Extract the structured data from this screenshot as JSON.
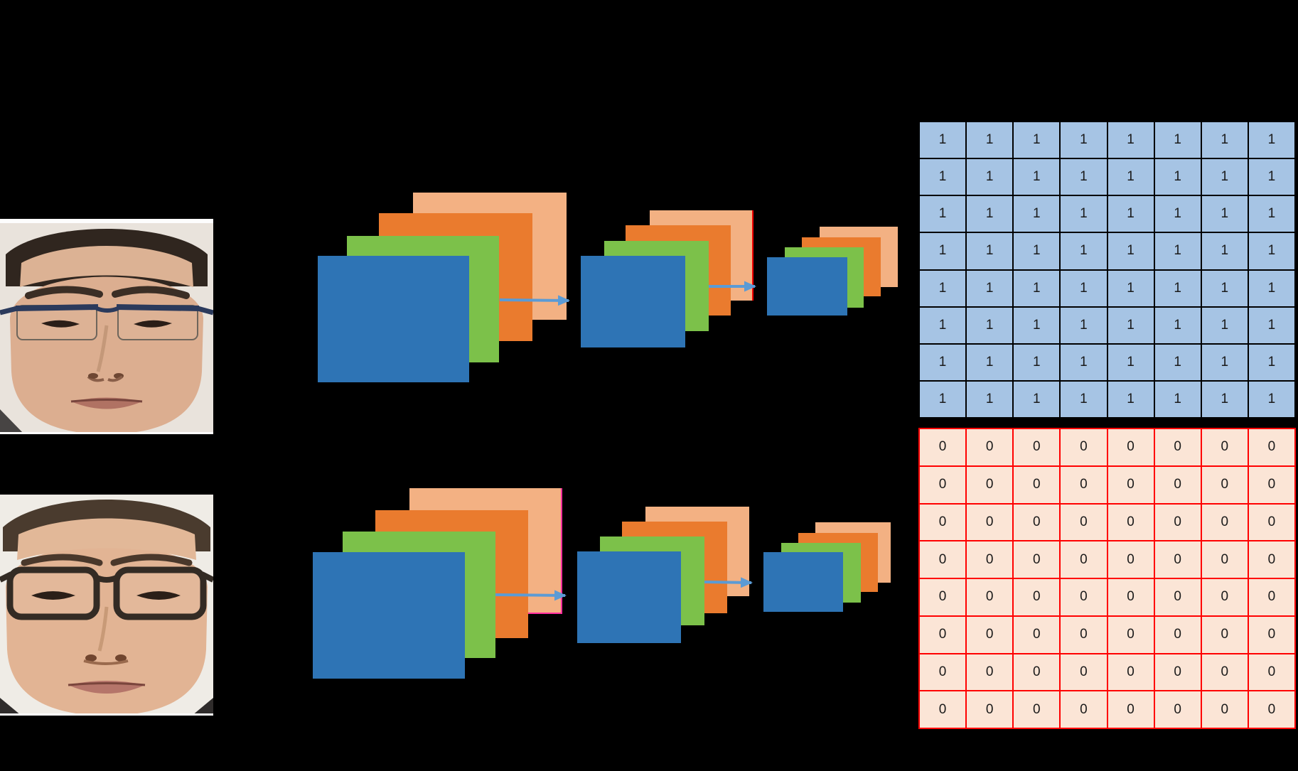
{
  "palette": {
    "background": "#000000",
    "map_blue": "#2E74B5",
    "map_green": "#7CC14A",
    "map_orange": "#EA7B2E",
    "map_peach": "#F3B183",
    "arrow_blue": "#5B9BD5",
    "arrow_black": "#000000",
    "peach_edge_red": "#FF0000",
    "peach_edge_magenta": "#FF2E9F",
    "ones_grid_fill": "#A6C4E4",
    "ones_grid_line": "#000000",
    "zeros_grid_fill": "#FBE5D6",
    "zeros_grid_line": "#FF0000",
    "digit_color": "#1a1a1a"
  },
  "ones_grid": {
    "rows": 8,
    "cols": 8,
    "values": [
      [
        "1",
        "1",
        "1",
        "1",
        "1",
        "1",
        "1",
        "1"
      ],
      [
        "1",
        "1",
        "1",
        "1",
        "1",
        "1",
        "1",
        "1"
      ],
      [
        "1",
        "1",
        "1",
        "1",
        "1",
        "1",
        "1",
        "1"
      ],
      [
        "1",
        "1",
        "1",
        "1",
        "1",
        "1",
        "1",
        "1"
      ],
      [
        "1",
        "1",
        "1",
        "1",
        "1",
        "1",
        "1",
        "1"
      ],
      [
        "1",
        "1",
        "1",
        "1",
        "1",
        "1",
        "1",
        "1"
      ],
      [
        "1",
        "1",
        "1",
        "1",
        "1",
        "1",
        "1",
        "1"
      ],
      [
        "1",
        "1",
        "1",
        "1",
        "1",
        "1",
        "1",
        "1"
      ]
    ]
  },
  "zeros_grid": {
    "rows": 8,
    "cols": 8,
    "values": [
      [
        "0",
        "0",
        "0",
        "0",
        "0",
        "0",
        "0",
        "0"
      ],
      [
        "0",
        "0",
        "0",
        "0",
        "0",
        "0",
        "0",
        "0"
      ],
      [
        "0",
        "0",
        "0",
        "0",
        "0",
        "0",
        "0",
        "0"
      ],
      [
        "0",
        "0",
        "0",
        "0",
        "0",
        "0",
        "0",
        "0"
      ],
      [
        "0",
        "0",
        "0",
        "0",
        "0",
        "0",
        "0",
        "0"
      ],
      [
        "0",
        "0",
        "0",
        "0",
        "0",
        "0",
        "0",
        "0"
      ],
      [
        "0",
        "0",
        "0",
        "0",
        "0",
        "0",
        "0",
        "0"
      ],
      [
        "0",
        "0",
        "0",
        "0",
        "0",
        "0",
        "0",
        "0"
      ]
    ]
  }
}
